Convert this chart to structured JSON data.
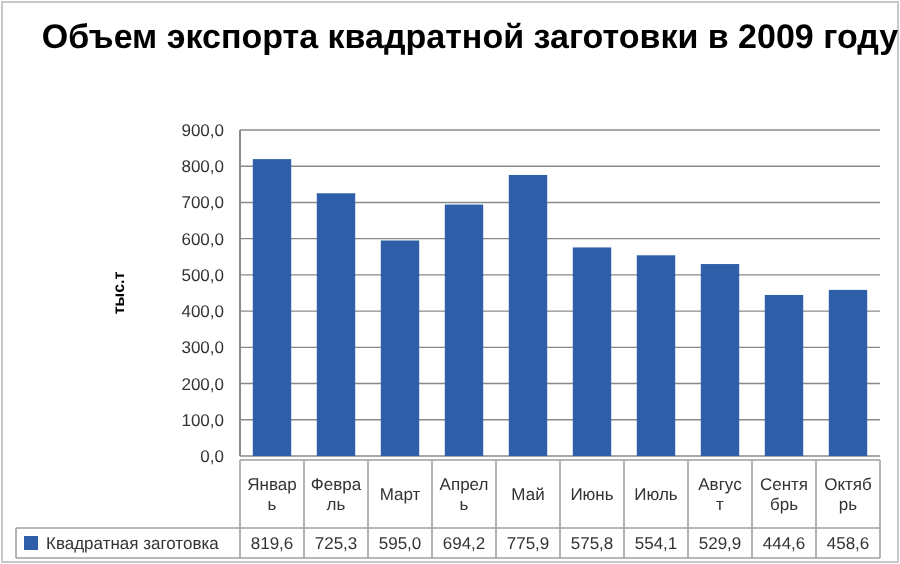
{
  "chart_data": {
    "type": "bar",
    "title": "Объем экспорта квадратной заготовки в 2009 году",
    "ylabel": "тыс.т",
    "categories": [
      "Январь",
      "Февраль",
      "Март",
      "Апрель",
      "Май",
      "Июнь",
      "Июль",
      "Август",
      "Сентябрь",
      "Октябрь"
    ],
    "series": [
      {
        "name": "Квадратная заготовка",
        "color": "#2e5fa8",
        "values": [
          819.6,
          725.3,
          595.0,
          694.2,
          775.9,
          575.8,
          554.1,
          529.9,
          444.6,
          458.6
        ],
        "value_labels": [
          "819,6",
          "725,3",
          "595,0",
          "694,2",
          "775,9",
          "575,8",
          "554,1",
          "529,9",
          "444,6",
          "458,6"
        ]
      }
    ],
    "ylim": [
      0,
      900
    ],
    "yticks": [
      {
        "value": 0,
        "label": "0,0"
      },
      {
        "value": 100,
        "label": "100,0"
      },
      {
        "value": 200,
        "label": "200,0"
      },
      {
        "value": 300,
        "label": "300,0"
      },
      {
        "value": 400,
        "label": "400,0"
      },
      {
        "value": 500,
        "label": "500,0"
      },
      {
        "value": 600,
        "label": "600,0"
      },
      {
        "value": 700,
        "label": "700,0"
      },
      {
        "value": 800,
        "label": "800,0"
      },
      {
        "value": 900,
        "label": "900,0"
      }
    ],
    "grid": "y",
    "legend": "bottom"
  }
}
